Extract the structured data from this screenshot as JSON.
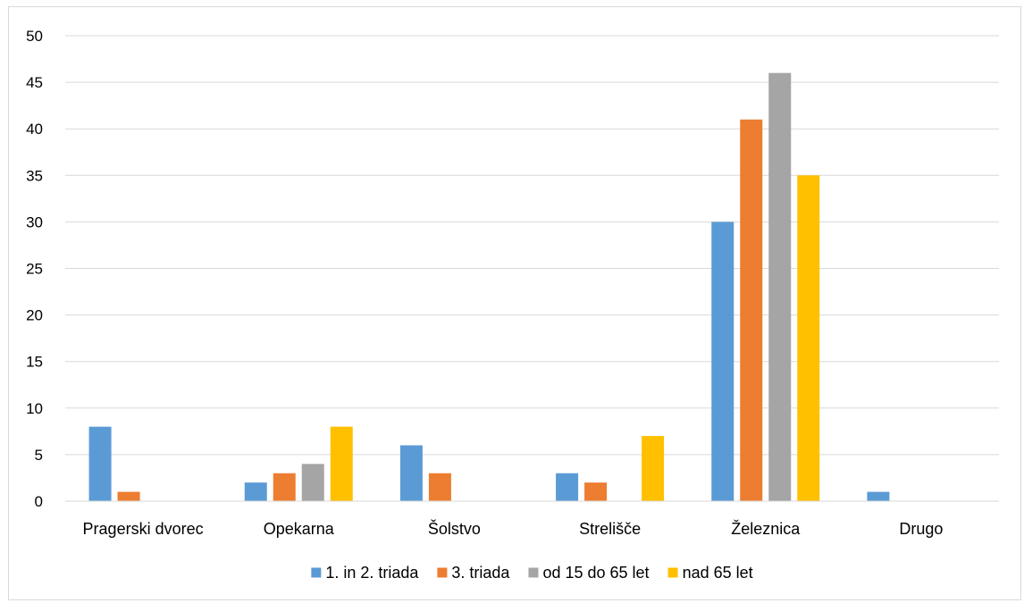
{
  "chart_data": {
    "type": "bar",
    "title": "",
    "xlabel": "",
    "ylabel": "",
    "categories": [
      "Pragerski dvorec",
      "Opekarna",
      "Šolstvo",
      "Strelišče",
      "Železnica",
      "Drugo"
    ],
    "series": [
      {
        "name": "1. in 2. triada",
        "color": "#5b9bd5",
        "values": [
          8,
          2,
          6,
          3,
          30,
          1
        ]
      },
      {
        "name": "3. triada",
        "color": "#ed7d31",
        "values": [
          1,
          3,
          3,
          2,
          41,
          0
        ]
      },
      {
        "name": "od 15 do 65 let",
        "color": "#a5a5a5",
        "values": [
          0,
          4,
          0,
          0,
          46,
          0
        ]
      },
      {
        "name": "nad 65 let",
        "color": "#ffc000",
        "values": [
          0,
          8,
          0,
          7,
          35,
          0
        ]
      }
    ],
    "ylim": [
      0,
      50
    ],
    "yticks": [
      "0",
      "5",
      "10",
      "15",
      "20",
      "25",
      "30",
      "35",
      "40",
      "45",
      "50"
    ],
    "grid": true,
    "legend_position": "bottom"
  }
}
